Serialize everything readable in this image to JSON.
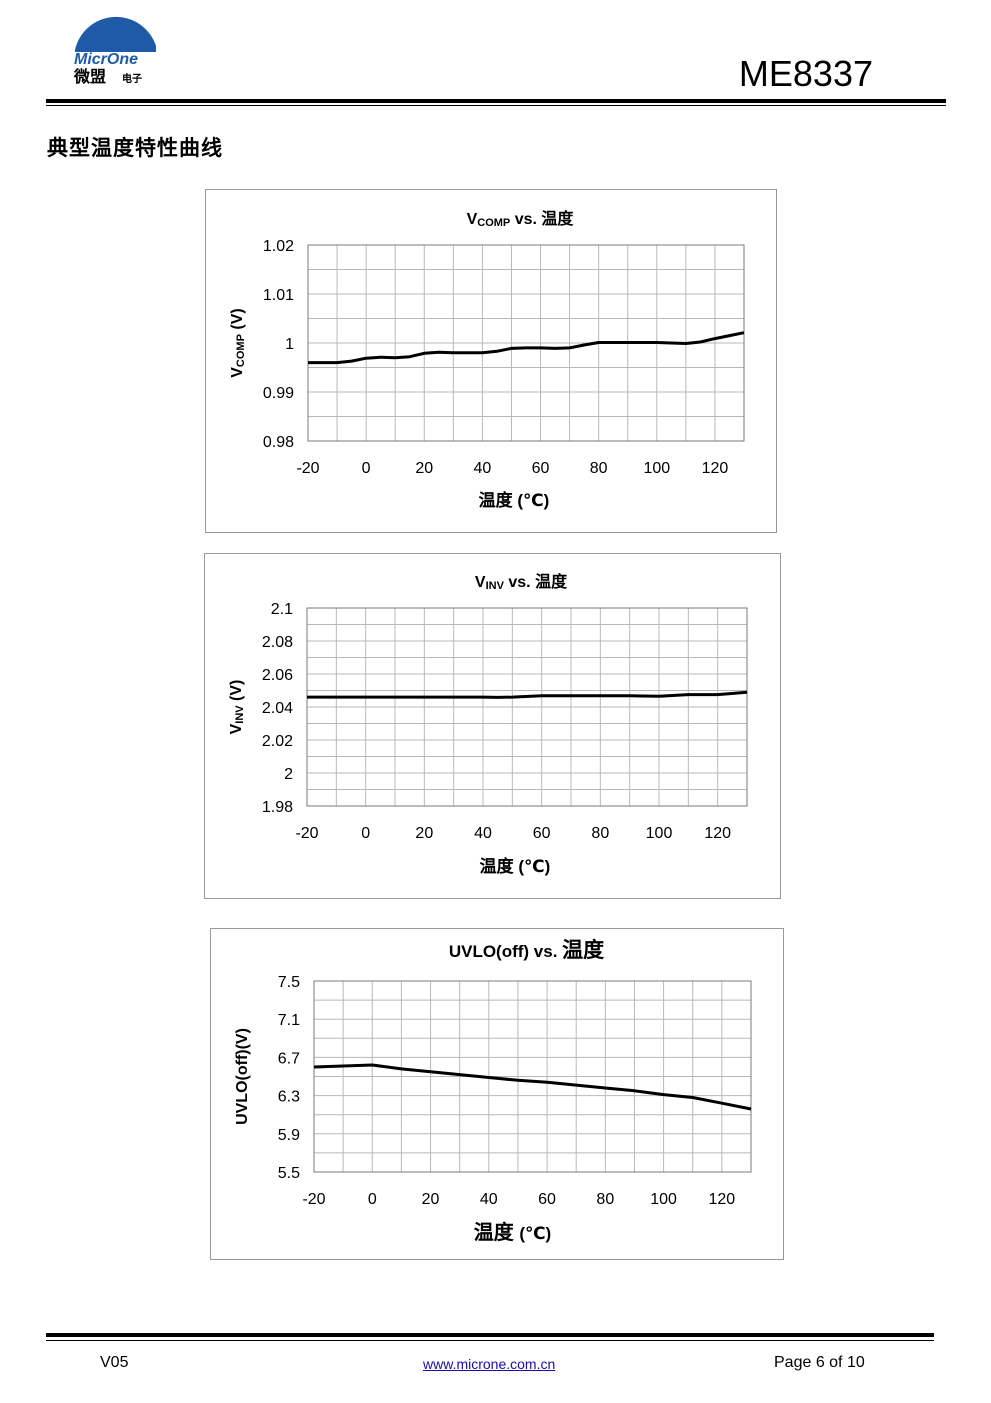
{
  "header": {
    "logo_text_en": "MicrOne",
    "logo_text_cn_main": "微盟",
    "logo_text_cn_sub": "电子",
    "part_number": "ME8337"
  },
  "section_title": "典型温度特性曲线",
  "colors": {
    "logo_blue": "#1f5aa6",
    "grid": "#b8b8b8",
    "axis": "#7a7a7a",
    "frame": "#9a9a9a",
    "line": "#000000",
    "link": "#1a0dab"
  },
  "chart_data": [
    {
      "type": "line",
      "title_main": "V",
      "title_sub": "COMP",
      "title_rest": " vs. 温度",
      "ylabel_main": "V",
      "ylabel_sub": "COMP",
      "ylabel_rest": " (V)",
      "xlabel": "温度  (℃)",
      "xlim": [
        -20,
        130
      ],
      "ylim": [
        0.98,
        1.02
      ],
      "xticks": [
        -20,
        0,
        20,
        40,
        60,
        80,
        100,
        120
      ],
      "xtick_labels": [
        "-20",
        "0",
        "20",
        "40",
        "60",
        "80",
        "100",
        "120"
      ],
      "yticks": [
        0.98,
        0.99,
        1.0,
        1.01,
        1.02
      ],
      "ytick_labels": [
        "0.98",
        "0.99",
        "1",
        "1.01",
        "1.02"
      ],
      "grid": true,
      "series": [
        {
          "x": [
            -20,
            -10,
            -5,
            0,
            5,
            10,
            15,
            20,
            25,
            30,
            35,
            40,
            45,
            50,
            55,
            60,
            65,
            70,
            75,
            80,
            85,
            90,
            95,
            100,
            105,
            110,
            115,
            120,
            125,
            130
          ],
          "y": [
            0.996,
            0.996,
            0.9963,
            0.9969,
            0.9971,
            0.997,
            0.9972,
            0.9979,
            0.9981,
            0.998,
            0.998,
            0.998,
            0.9983,
            0.9989,
            0.999,
            0.999,
            0.9989,
            0.999,
            0.9996,
            1.0001,
            1.0001,
            1.0001,
            1.0001,
            1.0001,
            1.0,
            0.9999,
            1.0002,
            1.0009,
            1.0015,
            1.0021
          ]
        }
      ]
    },
    {
      "type": "line",
      "title_main": "V",
      "title_sub": "INV",
      "title_rest": " vs. 温度",
      "ylabel_main": "V",
      "ylabel_sub": "INV",
      "ylabel_rest": " (V)",
      "xlabel": "温度 (℃)",
      "xlim": [
        -20,
        130
      ],
      "ylim": [
        1.98,
        2.1
      ],
      "xticks": [
        -20,
        0,
        20,
        40,
        60,
        80,
        100,
        120
      ],
      "xtick_labels": [
        "-20",
        "0",
        "20",
        "40",
        "60",
        "80",
        "100",
        "120"
      ],
      "yticks": [
        1.98,
        2.0,
        2.02,
        2.04,
        2.06,
        2.08,
        2.1
      ],
      "ytick_labels": [
        "1.98",
        "2",
        "2.02",
        "2.04",
        "2.06",
        "2.08",
        "2.1"
      ],
      "grid": true,
      "series": [
        {
          "x": [
            -20,
            0,
            20,
            40,
            45,
            50,
            60,
            70,
            80,
            90,
            100,
            110,
            120,
            130
          ],
          "y": [
            2.046,
            2.046,
            2.046,
            2.046,
            2.0458,
            2.046,
            2.0468,
            2.0468,
            2.0468,
            2.0468,
            2.0465,
            2.0475,
            2.0475,
            2.049
          ]
        }
      ]
    },
    {
      "type": "line",
      "title_main": "UVLO(off)   vs. ",
      "title_cn": "温度",
      "ylabel": "UVLO(off)(V)",
      "xlabel_cn": "温度",
      "xlabel_unit": "(℃)",
      "xlim": [
        -20,
        130
      ],
      "ylim": [
        5.5,
        7.5
      ],
      "xticks": [
        -20,
        0,
        20,
        40,
        60,
        80,
        100,
        120
      ],
      "xtick_labels": [
        "-20",
        "0",
        "20",
        "40",
        "60",
        "80",
        "100",
        "120"
      ],
      "yticks": [
        5.5,
        5.9,
        6.3,
        6.7,
        7.1,
        7.5
      ],
      "ytick_labels": [
        "5.5",
        "5.9",
        "6.3",
        "6.7",
        "7.1",
        "7.5"
      ],
      "grid": true,
      "series": [
        {
          "x": [
            -20,
            -10,
            0,
            10,
            20,
            30,
            40,
            50,
            60,
            70,
            80,
            90,
            100,
            110,
            120,
            130
          ],
          "y": [
            6.6,
            6.61,
            6.62,
            6.58,
            6.55,
            6.52,
            6.49,
            6.46,
            6.44,
            6.41,
            6.38,
            6.35,
            6.31,
            6.28,
            6.22,
            6.16
          ]
        }
      ]
    }
  ],
  "footer": {
    "version": "V05",
    "website": "www.microne.com.cn",
    "page": "Page 6 of 10"
  }
}
